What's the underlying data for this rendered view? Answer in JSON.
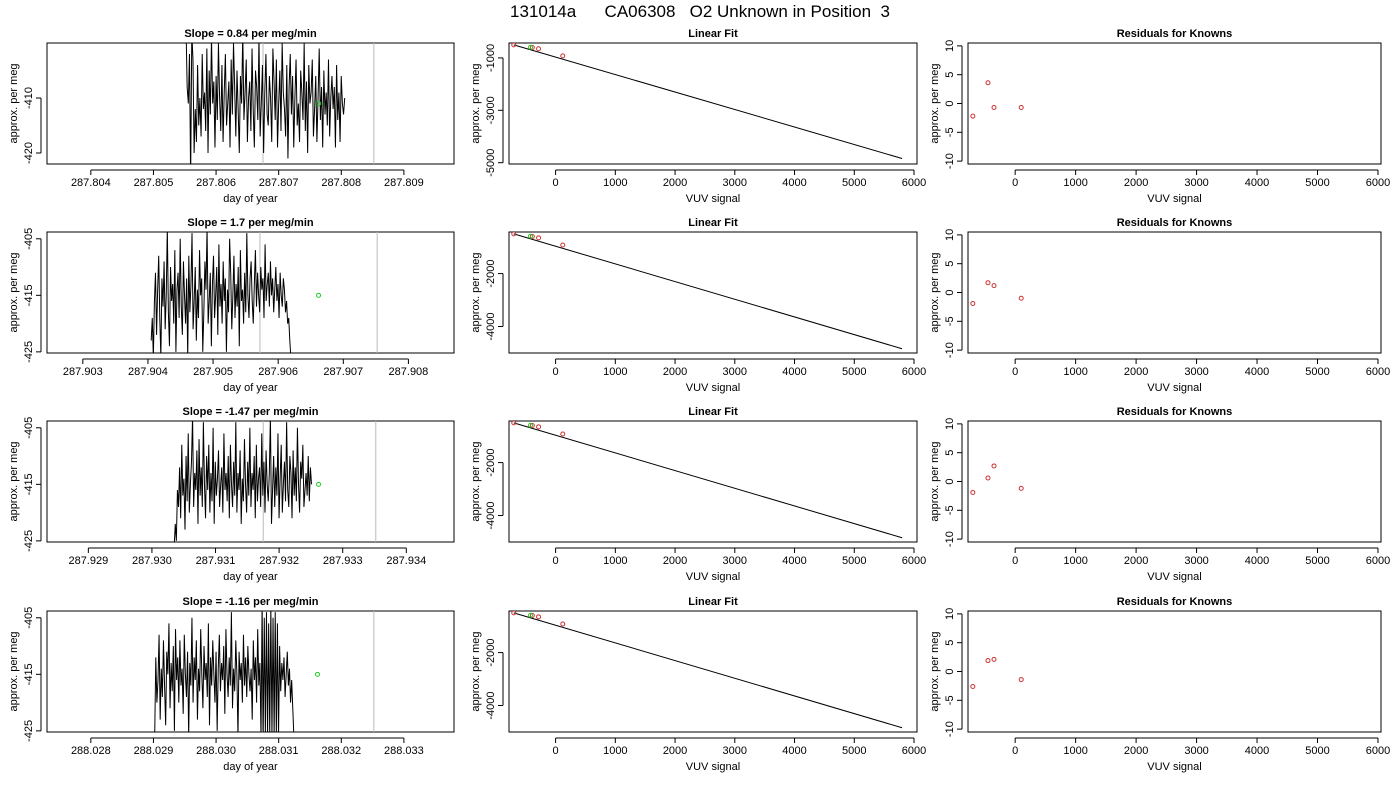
{
  "page": {
    "title": "131014a      CA06308   O2 Unknown in Position  3"
  },
  "chart_data": [
    {
      "type": "line",
      "row": 1,
      "panel": "timeseries",
      "title": "Slope =  0.84  per meg/min",
      "xlabel": "day of year",
      "ylabel": "approx. per meg",
      "xlim": [
        287.8033,
        287.8098
      ],
      "ylim": [
        -422,
        -400
      ],
      "xticks": [
        287.804,
        287.805,
        287.806,
        287.807,
        287.808,
        287.809
      ],
      "yticks": [
        -420,
        -410
      ],
      "x_start": 287.80552,
      "x_step": 1.85e-05,
      "values": [
        -397,
        -408,
        -411,
        -402,
        -425,
        -398,
        -403,
        -420,
        -412,
        -418,
        -404,
        -415,
        -410,
        -417,
        -402,
        -412,
        -409,
        -416,
        -401,
        -420,
        -405,
        -413,
        -399,
        -411,
        -407,
        -419,
        -406,
        -414,
        -400,
        -410,
        -416,
        -404,
        -418,
        -409,
        -402,
        -415,
        -411,
        -407,
        -419,
        -403,
        -413,
        -400,
        -408,
        -417,
        -405,
        -412,
        -420,
        -406,
        -411,
        -398,
        -414,
        -409,
        -403,
        -418,
        -410,
        -407,
        -416,
        -401,
        -412,
        -419,
        -405,
        -408,
        -414,
        -399,
        -417,
        -411,
        -404,
        -420,
        -409,
        -402,
        -413,
        -415,
        -406,
        -410,
        -418,
        -401,
        -407,
        -414,
        -403,
        -419,
        -411,
        -405,
        -416,
        -400,
        -409,
        -412,
        -417,
        -404,
        -421,
        -408,
        -402,
        -413,
        -406,
        -419,
        -410,
        -403,
        -415,
        -411,
        -418,
        -405,
        -409,
        -414,
        -400,
        -416,
        -407,
        -420,
        -404,
        -411,
        -409,
        -403,
        -417,
        -412,
        -406,
        -418,
        -410,
        -401,
        -414,
        -408,
        -419,
        -405,
        -413,
        -409,
        -415,
        -403,
        -417,
        -410,
        -406,
        -412,
        -408,
        -419,
        -404,
        -414,
        -409,
        -418,
        -406,
        -411,
        -413,
        -410
      ],
      "markers": [
        {
          "x": 287.80764,
          "y": -411
        }
      ],
      "vlines": [
        287.80675,
        287.80852
      ]
    },
    {
      "type": "scatter",
      "row": 1,
      "panel": "linear-fit",
      "title": "Linear Fit",
      "xlabel": "VUV signal",
      "ylabel": "approx. per meg",
      "xlim": [
        -780,
        6050
      ],
      "ylim": [
        -5050,
        -430
      ],
      "xticks": [
        0,
        1000,
        2000,
        3000,
        4000,
        5000,
        6000
      ],
      "yticks": [
        -5000,
        -3000,
        -1000
      ],
      "fit_line": [
        {
          "x": -700,
          "y": -500
        },
        {
          "x": 5800,
          "y": -4840
        }
      ],
      "points_known": [
        {
          "x": -700,
          "y": -500
        },
        {
          "x": -390,
          "y": -600
        },
        {
          "x": -285,
          "y": -650
        },
        {
          "x": 120,
          "y": -920
        }
      ],
      "points_unknown": [
        {
          "x": -420,
          "y": -590
        }
      ]
    },
    {
      "type": "scatter",
      "row": 1,
      "panel": "residuals",
      "title": "Residuals for Knowns",
      "xlabel": "VUV signal",
      "ylabel": "approx. per meg",
      "xlim": [
        -780,
        6050
      ],
      "ylim": [
        -10.5,
        10.5
      ],
      "xticks": [
        0,
        1000,
        2000,
        3000,
        4000,
        5000,
        6000
      ],
      "yticks": [
        -10,
        -5,
        0,
        5,
        10
      ],
      "points": [
        {
          "x": -700,
          "y": -2.2
        },
        {
          "x": -450,
          "y": 3.6
        },
        {
          "x": -350,
          "y": -0.7
        },
        {
          "x": 100,
          "y": -0.7
        }
      ]
    },
    {
      "type": "line",
      "row": 2,
      "panel": "timeseries",
      "title": "Slope =  1.7  per meg/min",
      "xlabel": "day of year",
      "ylabel": "approx. per meg",
      "xlim": [
        287.90245,
        287.9087
      ],
      "ylim": [
        -425.2,
        -403.8
      ],
      "xticks": [
        287.903,
        287.904,
        287.905,
        287.906,
        287.907,
        287.908
      ],
      "yticks": [
        -425,
        -415,
        -405
      ],
      "x_start": 287.90405,
      "x_step": 1.65e-05,
      "values": [
        -423,
        -419,
        -426,
        -416,
        -411,
        -422,
        -414,
        -408,
        -419,
        -426,
        -412,
        -417,
        -409,
        -421,
        -415,
        -403,
        -418,
        -424,
        -410,
        -416,
        -413,
        -420,
        -407,
        -425,
        -414,
        -411,
        -419,
        -405,
        -417,
        -422,
        -409,
        -415,
        -420,
        -412,
        -426,
        -408,
        -418,
        -413,
        -404,
        -421,
        -416,
        -410,
        -423,
        -414,
        -419,
        -407,
        -415,
        -412,
        -425,
        -418,
        -409,
        -414,
        -403,
        -420,
        -416,
        -411,
        -424,
        -413,
        -408,
        -419,
        -415,
        -410,
        -422,
        -406,
        -417,
        -413,
        -420,
        -409,
        -416,
        -412,
        -425,
        -414,
        -418,
        -405,
        -411,
        -421,
        -415,
        -408,
        -419,
        -413,
        -417,
        -410,
        -424,
        -407,
        -416,
        -414,
        -420,
        -411,
        -418,
        -404,
        -415,
        -419,
        -412,
        -409,
        -416,
        -420,
        -413,
        -407,
        -417,
        -411,
        -415,
        -418,
        -410,
        -414,
        -412,
        -419,
        -406,
        -416,
        -413,
        -411,
        -417,
        -409,
        -415,
        -412,
        -418,
        -414,
        -410,
        -416,
        -413,
        -419,
        -411,
        -415,
        -417,
        -412,
        -414,
        -418,
        -416,
        -420,
        -419,
        -423,
        -426
      ],
      "markers": [
        {
          "x": 287.90662,
          "y": -415
        }
      ],
      "vlines": [
        287.90572,
        287.90752
      ]
    },
    {
      "type": "scatter",
      "row": 2,
      "panel": "linear-fit",
      "title": "Linear Fit",
      "xlabel": "VUV signal",
      "ylabel": "approx. per meg",
      "xlim": [
        -780,
        6050
      ],
      "ylim": [
        -5000,
        -430
      ],
      "xticks": [
        0,
        1000,
        2000,
        3000,
        4000,
        5000,
        6000
      ],
      "yticks": [
        -4000,
        -2000
      ],
      "fit_line": [
        {
          "x": -700,
          "y": -500
        },
        {
          "x": 5800,
          "y": -4840
        }
      ],
      "points_known": [
        {
          "x": -700,
          "y": -500
        },
        {
          "x": -390,
          "y": -600
        },
        {
          "x": -285,
          "y": -650
        },
        {
          "x": 120,
          "y": -920
        }
      ],
      "points_unknown": [
        {
          "x": -420,
          "y": -590
        }
      ]
    },
    {
      "type": "scatter",
      "row": 2,
      "panel": "residuals",
      "title": "Residuals for Knowns",
      "xlabel": "VUV signal",
      "ylabel": "approx. per meg",
      "xlim": [
        -780,
        6050
      ],
      "ylim": [
        -10.5,
        10.5
      ],
      "xticks": [
        0,
        1000,
        2000,
        3000,
        4000,
        5000,
        6000
      ],
      "yticks": [
        -10,
        -5,
        0,
        5,
        10
      ],
      "points": [
        {
          "x": -700,
          "y": -1.9
        },
        {
          "x": -450,
          "y": 1.7
        },
        {
          "x": -350,
          "y": 1.2
        },
        {
          "x": 100,
          "y": -1.0
        }
      ]
    },
    {
      "type": "line",
      "row": 3,
      "panel": "timeseries",
      "title": "Slope =  -1.47  per meg/min",
      "xlabel": "day of year",
      "ylabel": "approx. per meg",
      "xlim": [
        287.92835,
        287.93475
      ],
      "ylim": [
        -425.2,
        -403.8
      ],
      "xticks": [
        287.929,
        287.93,
        287.931,
        287.932,
        287.933,
        287.934
      ],
      "yticks": [
        -425,
        -415,
        -405
      ],
      "x_start": 287.93035,
      "x_step": 1.7e-05,
      "values": [
        -426,
        -422,
        -425,
        -416,
        -419,
        -412,
        -421,
        -408,
        -417,
        -414,
        -423,
        -410,
        -418,
        -406,
        -420,
        -415,
        -411,
        -403,
        -419,
        -413,
        -416,
        -409,
        -422,
        -407,
        -417,
        -412,
        -419,
        -404,
        -415,
        -421,
        -410,
        -416,
        -408,
        -420,
        -413,
        -418,
        -405,
        -422,
        -411,
        -417,
        -414,
        -409,
        -419,
        -415,
        -412,
        -420,
        -406,
        -416,
        -413,
        -418,
        -410,
        -421,
        -408,
        -415,
        -419,
        -411,
        -417,
        -404,
        -420,
        -413,
        -416,
        -409,
        -422,
        -414,
        -418,
        -407,
        -415,
        -420,
        -411,
        -417,
        -405,
        -419,
        -413,
        -416,
        -410,
        -421,
        -408,
        -418,
        -414,
        -412,
        -419,
        -406,
        -417,
        -411,
        -420,
        -409,
        -415,
        -418,
        -413,
        -403,
        -422,
        -416,
        -410,
        -419,
        -412,
        -417,
        -406,
        -421,
        -414,
        -408,
        -420,
        -415,
        -411,
        -418,
        -404,
        -416,
        -419,
        -410,
        -413,
        -421,
        -409,
        -417,
        -412,
        -418,
        -405,
        -415,
        -420,
        -411,
        -414,
        -408,
        -419,
        -416,
        -413,
        -417,
        -410,
        -418,
        -412,
        -415
      ],
      "markers": [
        {
          "x": 287.93262,
          "y": -415
        }
      ],
      "vlines": [
        287.93175,
        287.93352
      ]
    },
    {
      "type": "scatter",
      "row": 3,
      "panel": "linear-fit",
      "title": "Linear Fit",
      "xlabel": "VUV signal",
      "ylabel": "approx. per meg",
      "xlim": [
        -780,
        6050
      ],
      "ylim": [
        -5000,
        -430
      ],
      "xticks": [
        0,
        1000,
        2000,
        3000,
        4000,
        5000,
        6000
      ],
      "yticks": [
        -4000,
        -2000
      ],
      "fit_line": [
        {
          "x": -700,
          "y": -500
        },
        {
          "x": 5800,
          "y": -4840
        }
      ],
      "points_known": [
        {
          "x": -700,
          "y": -500
        },
        {
          "x": -390,
          "y": -600
        },
        {
          "x": -285,
          "y": -650
        },
        {
          "x": 120,
          "y": -920
        }
      ],
      "points_unknown": [
        {
          "x": -420,
          "y": -590
        }
      ]
    },
    {
      "type": "scatter",
      "row": 3,
      "panel": "residuals",
      "title": "Residuals for Knowns",
      "xlabel": "VUV signal",
      "ylabel": "approx. per meg",
      "xlim": [
        -780,
        6050
      ],
      "ylim": [
        -10.5,
        10.5
      ],
      "xticks": [
        0,
        1000,
        2000,
        3000,
        4000,
        5000,
        6000
      ],
      "yticks": [
        -10,
        -5,
        0,
        5,
        10
      ],
      "points": [
        {
          "x": -700,
          "y": -1.9
        },
        {
          "x": -450,
          "y": 0.6
        },
        {
          "x": -350,
          "y": 2.7
        },
        {
          "x": 100,
          "y": -1.2
        }
      ]
    },
    {
      "type": "line",
      "row": 4,
      "panel": "timeseries",
      "title": "Slope =  -1.16  per meg/min",
      "xlabel": "day of year",
      "ylabel": "approx. per meg",
      "xlim": [
        288.0273,
        288.0338
      ],
      "ylim": [
        -425.2,
        -403.8
      ],
      "xticks": [
        288.028,
        288.029,
        288.03,
        288.031,
        288.032,
        288.033
      ],
      "yticks": [
        -425,
        -415,
        -405
      ],
      "x_start": 288.02902,
      "x_step": 1.75e-05,
      "values": [
        -426,
        -412,
        -420,
        -416,
        -408,
        -423,
        -414,
        -419,
        -409,
        -417,
        -424,
        -411,
        -415,
        -406,
        -421,
        -413,
        -418,
        -410,
        -425,
        -407,
        -416,
        -412,
        -420,
        -409,
        -417,
        -414,
        -422,
        -408,
        -415,
        -419,
        -411,
        -426,
        -413,
        -417,
        -405,
        -420,
        -412,
        -416,
        -409,
        -423,
        -414,
        -418,
        -407,
        -415,
        -421,
        -410,
        -416,
        -413,
        -419,
        -406,
        -424,
        -412,
        -417,
        -409,
        -415,
        -420,
        -411,
        -425,
        -414,
        -408,
        -418,
        -413,
        -416,
        -410,
        -422,
        -407,
        -415,
        -419,
        -412,
        -417,
        -404,
        -421,
        -414,
        -418,
        -409,
        -415,
        -426,
        -411,
        -416,
        -413,
        -420,
        -408,
        -417,
        -412,
        -419,
        -410,
        -415,
        -418,
        -414,
        -423,
        -409,
        -416,
        -412,
        -420,
        -407,
        -417,
        -413,
        -426,
        -403,
        -426,
        -405,
        -426,
        -404,
        -426,
        -406,
        -426,
        -403,
        -426,
        -405,
        -426,
        -404,
        -426,
        -406,
        -426,
        -410,
        -418,
        -413,
        -416,
        -412,
        -419,
        -415,
        -411,
        -417,
        -414,
        -420,
        -416,
        -421,
        -426
      ],
      "markers": [
        {
          "x": 288.03162,
          "y": -415
        }
      ],
      "vlines": [
        288.03074,
        288.03252
      ]
    },
    {
      "type": "scatter",
      "row": 4,
      "panel": "linear-fit",
      "title": "Linear Fit",
      "xlabel": "VUV signal",
      "ylabel": "approx. per meg",
      "xlim": [
        -780,
        6050
      ],
      "ylim": [
        -5000,
        -430
      ],
      "xticks": [
        0,
        1000,
        2000,
        3000,
        4000,
        5000,
        6000
      ],
      "yticks": [
        -4000,
        -2000
      ],
      "fit_line": [
        {
          "x": -700,
          "y": -500
        },
        {
          "x": 5800,
          "y": -4840
        }
      ],
      "points_known": [
        {
          "x": -700,
          "y": -500
        },
        {
          "x": -390,
          "y": -600
        },
        {
          "x": -285,
          "y": -650
        },
        {
          "x": 120,
          "y": -920
        }
      ],
      "points_unknown": [
        {
          "x": -420,
          "y": -590
        }
      ]
    },
    {
      "type": "scatter",
      "row": 4,
      "panel": "residuals",
      "title": "Residuals for Knowns",
      "xlabel": "VUV signal",
      "ylabel": "approx. per meg",
      "xlim": [
        -780,
        6050
      ],
      "ylim": [
        -10.5,
        10.5
      ],
      "xticks": [
        0,
        1000,
        2000,
        3000,
        4000,
        5000,
        6000
      ],
      "yticks": [
        -10,
        -5,
        0,
        5,
        10
      ],
      "points": [
        {
          "x": -700,
          "y": -2.6
        },
        {
          "x": -450,
          "y": 1.9
        },
        {
          "x": -350,
          "y": 2.1
        },
        {
          "x": 100,
          "y": -1.4
        }
      ]
    }
  ],
  "colors": {
    "line": "#000000",
    "known_point": "#cc3333",
    "unknown_point": "#22cc22",
    "vline": "#bbbbbb"
  }
}
